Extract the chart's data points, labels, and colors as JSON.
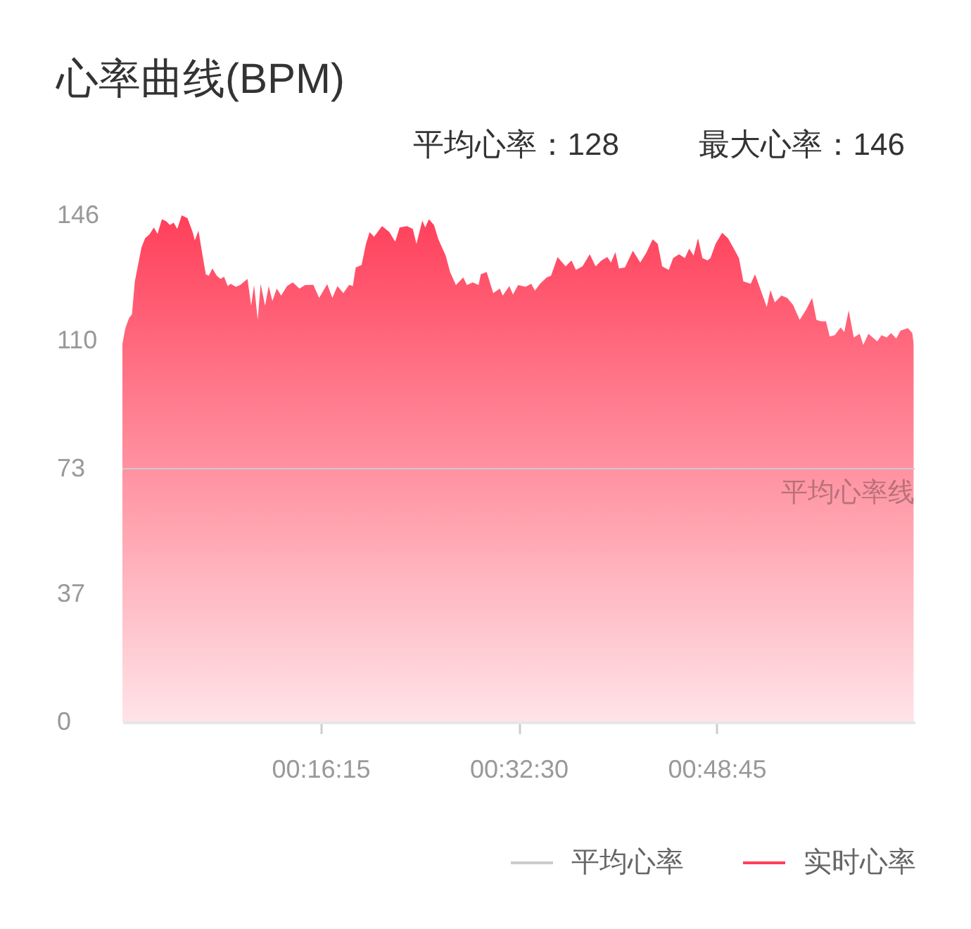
{
  "chart_data": {
    "type": "area",
    "title": "心率曲线(BPM)",
    "annotations": [
      "平均心率：128",
      "最大心率：146",
      {
        "text": "平均心率线",
        "x": 1.0833,
        "y": 73
      }
    ],
    "xlim": [
      0,
      1.0833
    ],
    "xticks": [
      {
        "value": 0.2708,
        "label": "00:16:15"
      },
      {
        "value": 0.5417,
        "label": "00:32:30"
      },
      {
        "value": 0.8125,
        "label": "00:48:45"
      }
    ],
    "ylim": [
      0,
      146
    ],
    "yticks": [
      0,
      37,
      73,
      110,
      146
    ],
    "legend": "bottom right",
    "series": [
      {
        "name": "平均心率",
        "type": "line",
        "color": "#cccccc",
        "x": [
          0,
          1.0833
        ],
        "values": [
          73,
          73
        ]
      },
      {
        "name": "实时心率",
        "color": "#ff3f5a",
        "x": [
          0,
          0.004,
          0.009,
          0.013,
          0.017,
          0.022,
          0.026,
          0.031,
          0.037,
          0.043,
          0.048,
          0.054,
          0.06,
          0.065,
          0.07,
          0.075,
          0.081,
          0.089,
          0.096,
          0.099,
          0.104,
          0.108,
          0.114,
          0.118,
          0.123,
          0.129,
          0.134,
          0.139,
          0.144,
          0.148,
          0.155,
          0.161,
          0.171,
          0.176,
          0.18,
          0.185,
          0.189,
          0.195,
          0.2,
          0.205,
          0.211,
          0.217,
          0.225,
          0.233,
          0.242,
          0.25,
          0.261,
          0.269,
          0.28,
          0.287,
          0.294,
          0.302,
          0.31,
          0.315,
          0.319,
          0.327,
          0.333,
          0.338,
          0.344,
          0.355,
          0.365,
          0.373,
          0.379,
          0.389,
          0.397,
          0.402,
          0.41,
          0.414,
          0.419,
          0.426,
          0.432,
          0.442,
          0.448,
          0.456,
          0.466,
          0.471,
          0.479,
          0.487,
          0.49,
          0.498,
          0.507,
          0.516,
          0.52,
          0.529,
          0.534,
          0.541,
          0.551,
          0.559,
          0.564,
          0.571,
          0.58,
          0.586,
          0.595,
          0.606,
          0.614,
          0.62,
          0.629,
          0.639,
          0.647,
          0.655,
          0.663,
          0.668,
          0.674,
          0.679,
          0.687,
          0.698,
          0.708,
          0.716,
          0.725,
          0.732,
          0.738,
          0.747,
          0.753,
          0.761,
          0.769,
          0.775,
          0.781,
          0.787,
          0.793,
          0.8,
          0.804,
          0.811,
          0.82,
          0.828,
          0.836,
          0.843,
          0.849,
          0.859,
          0.865,
          0.872,
          0.881,
          0.886,
          0.892,
          0.901,
          0.909,
          0.917,
          0.926,
          0.935,
          0.943,
          0.949,
          0.955,
          0.962,
          0.967,
          0.974,
          0.982,
          0.987,
          0.993,
          1.0,
          1.008,
          1.013,
          1.02,
          1.032,
          1.038,
          1.045,
          1.051,
          1.058,
          1.064,
          1.074,
          1.08,
          1.082
        ],
        "values": [
          109,
          113.5,
          116.4,
          117.5,
          127,
          132.4,
          136.7,
          139.4,
          140.5,
          142.5,
          140.7,
          144.9,
          144.3,
          143.2,
          143.9,
          142.1,
          146,
          145.2,
          141.2,
          138.8,
          141.6,
          136.4,
          129,
          128.6,
          130.7,
          128.6,
          127.7,
          128.3,
          125.6,
          126.3,
          125.4,
          125.9,
          127.7,
          120,
          125.9,
          115.9,
          126.3,
          120,
          125.6,
          121.3,
          124.9,
          122.9,
          125.6,
          126.7,
          124.9,
          125.9,
          126,
          122.2,
          126.2,
          122.2,
          125.6,
          123.6,
          126,
          125.6,
          131,
          131.7,
          137.8,
          141.2,
          139.8,
          142.9,
          141.2,
          138.4,
          142.5,
          142.9,
          142.1,
          137.8,
          144.5,
          142.5,
          144.9,
          143.2,
          139.1,
          134.4,
          129.7,
          125.9,
          128.1,
          125.9,
          126.7,
          125.9,
          129,
          129.7,
          123.6,
          124.9,
          122.9,
          125.6,
          123.2,
          125.9,
          125.4,
          126.3,
          124.3,
          126.3,
          128.1,
          128.6,
          134,
          131.3,
          133,
          130.3,
          131.3,
          134.8,
          131.3,
          133,
          134,
          132.4,
          135.4,
          130.7,
          131,
          135.8,
          132.4,
          135.1,
          139.1,
          137.8,
          131.3,
          130.3,
          133.7,
          134.8,
          133.7,
          136.4,
          134.4,
          139.4,
          133.7,
          133,
          133.7,
          137.8,
          141,
          139.4,
          136.4,
          133.7,
          127,
          126.3,
          129,
          124.9,
          119.6,
          124.5,
          120.9,
          122.9,
          122.2,
          120.2,
          115.9,
          118.9,
          122.2,
          115.9,
          115.5,
          115.5,
          111.1,
          111.5,
          113.7,
          112.4,
          118.6,
          110.8,
          111.9,
          108.7,
          111.9,
          109.7,
          111.5,
          110.8,
          112.1,
          110.5,
          112.8,
          113.5,
          112.1,
          108.7
        ]
      }
    ]
  }
}
